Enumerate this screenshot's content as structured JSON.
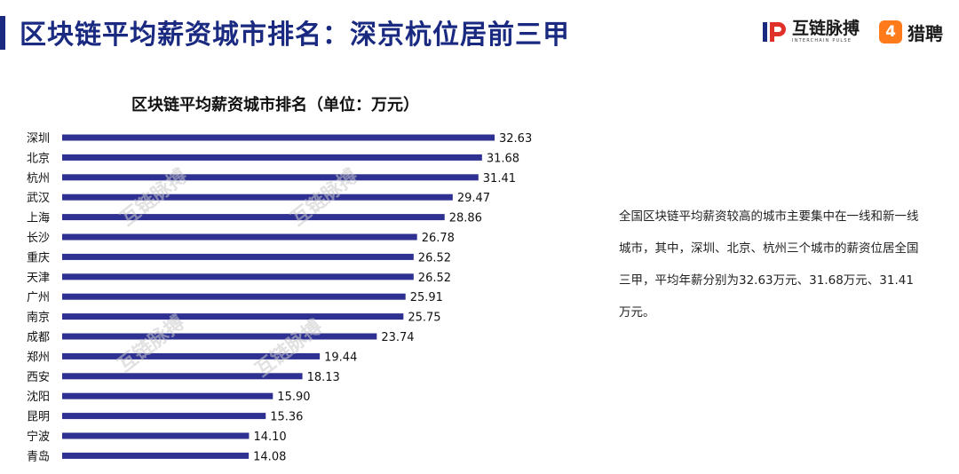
{
  "header": {
    "title": "区块链平均薪资城市排名：深京杭位居前三甲",
    "brand_primary": "互链脉搏",
    "brand_primary_en": "INTERCHAIN PULSE",
    "brand_primary_icon": "ip-logo-icon",
    "brand_secondary": "猎聘",
    "brand_secondary_badge": "4",
    "colors": {
      "title": "#1a2a80",
      "accent": "#1a2a80",
      "brand_secondary": "#ff7a1a"
    }
  },
  "summary": "全国区块链平均薪资较高的城市主要集中在一线和新一线城市，其中，深圳、北京、杭州三个城市的薪资位居全国三甲，平均年薪分别为32.63万元、31.68万元、31.41万元。",
  "watermark": "互链脉搏",
  "chart_data": {
    "type": "bar",
    "orientation": "horizontal",
    "title": "区块链平均薪资城市排名（单位：万元）",
    "categories": [
      "深圳",
      "北京",
      "杭州",
      "武汉",
      "上海",
      "长沙",
      "重庆",
      "天津",
      "广州",
      "南京",
      "成都",
      "郑州",
      "西安",
      "沈阳",
      "昆明",
      "宁波",
      "青岛"
    ],
    "values": [
      32.63,
      31.68,
      31.41,
      29.47,
      28.86,
      26.78,
      26.52,
      26.52,
      25.91,
      25.75,
      23.74,
      19.44,
      18.13,
      15.9,
      15.36,
      14.1,
      14.08
    ],
    "value_labels": [
      "32.63",
      "31.68",
      "31.41",
      "29.47",
      "28.86",
      "26.78",
      "26.52",
      "26.52",
      "25.91",
      "25.75",
      "23.74",
      "19.44",
      "18.13",
      "15.90",
      "15.36",
      "14.10",
      "14.08"
    ],
    "xlim": [
      0,
      32.63
    ],
    "bar_color": "#2e3192",
    "grid": false,
    "legend": "none"
  }
}
